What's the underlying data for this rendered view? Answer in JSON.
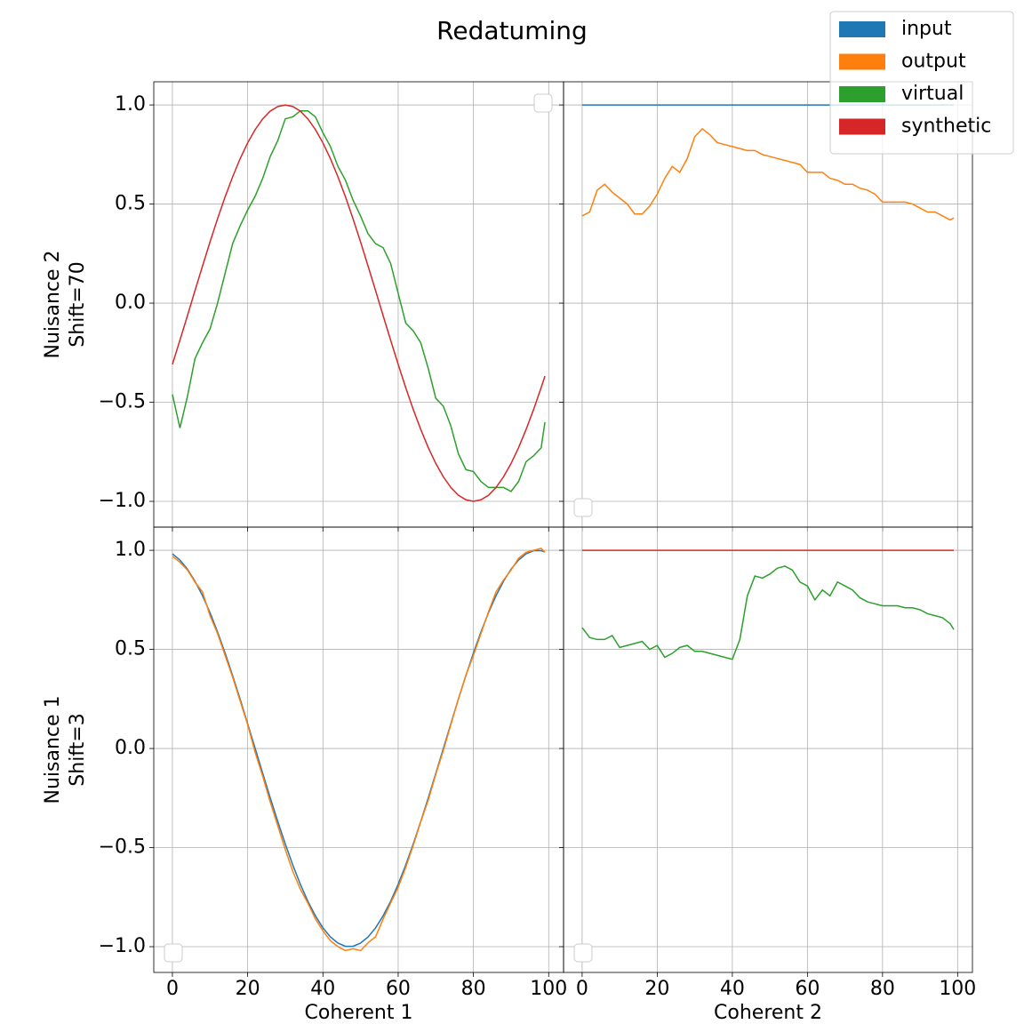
{
  "title": "Redatuming",
  "legend_loc": "upper right",
  "chart_data": [
    {
      "type": "line",
      "xlabel": "Coherent 1",
      "ylabel": [
        "Nuisance 1",
        "Shift=3"
      ],
      "x": [
        0,
        2,
        4,
        6,
        8,
        10,
        12,
        14,
        16,
        18,
        20,
        22,
        24,
        26,
        28,
        30,
        32,
        34,
        36,
        38,
        40,
        42,
        44,
        46,
        48,
        50,
        52,
        54,
        56,
        58,
        60,
        62,
        64,
        66,
        68,
        70,
        72,
        74,
        76,
        78,
        80,
        82,
        84,
        86,
        88,
        90,
        92,
        94,
        96,
        98,
        99
      ],
      "series": [
        {
          "name": "input",
          "color": "#1f77b4",
          "values": [
            0.982,
            0.951,
            0.905,
            0.844,
            0.771,
            0.685,
            0.588,
            0.482,
            0.368,
            0.249,
            0.125,
            0,
            -0.125,
            -0.249,
            -0.368,
            -0.482,
            -0.588,
            -0.685,
            -0.771,
            -0.844,
            -0.905,
            -0.951,
            -0.982,
            -0.998,
            -0.998,
            -0.982,
            -0.951,
            -0.905,
            -0.844,
            -0.771,
            -0.685,
            -0.588,
            -0.482,
            -0.368,
            -0.249,
            -0.125,
            0,
            0.125,
            0.249,
            0.368,
            0.482,
            0.588,
            0.685,
            0.771,
            0.844,
            0.905,
            0.951,
            0.982,
            0.998,
            0.998,
            0.992
          ]
        },
        {
          "name": "output",
          "color": "#ff7f0e",
          "values": [
            0.97,
            0.94,
            0.9,
            0.84,
            0.79,
            0.67,
            0.58,
            0.47,
            0.36,
            0.24,
            0.12,
            -0.02,
            -0.14,
            -0.27,
            -0.39,
            -0.51,
            -0.62,
            -0.71,
            -0.78,
            -0.86,
            -0.92,
            -0.97,
            -1.0,
            -1.02,
            -1.01,
            -1.02,
            -0.98,
            -0.95,
            -0.86,
            -0.78,
            -0.7,
            -0.6,
            -0.49,
            -0.37,
            -0.26,
            -0.13,
            -0.01,
            0.12,
            0.25,
            0.37,
            0.47,
            0.58,
            0.69,
            0.79,
            0.85,
            0.9,
            0.96,
            0.99,
            1.0,
            1.01,
            0.99
          ]
        }
      ],
      "xlim": [
        -4.95,
        103.95
      ],
      "ylim": [
        -1.13,
        1.117
      ],
      "xticks": [
        0,
        20,
        40,
        60,
        80,
        100
      ],
      "yticks": [
        {
          "value": -1,
          "label": "−1.0"
        },
        {
          "value": -0.5,
          "label": "−0.5"
        },
        {
          "value": 0,
          "label": "0.0"
        },
        0.5,
        {
          "value": 1,
          "label": "1.0"
        }
      ],
      "grid": true
    },
    {
      "type": "line",
      "ylabel": [
        "Nuisance 2",
        "Shift=70"
      ],
      "x": [
        0,
        2,
        4,
        6,
        8,
        10,
        12,
        14,
        16,
        18,
        20,
        22,
        24,
        26,
        28,
        30,
        32,
        34,
        36,
        38,
        40,
        42,
        44,
        46,
        48,
        50,
        52,
        54,
        56,
        58,
        60,
        62,
        64,
        66,
        68,
        70,
        72,
        74,
        76,
        78,
        80,
        82,
        84,
        86,
        88,
        90,
        92,
        94,
        96,
        98,
        99
      ],
      "series": [
        {
          "name": "virtual",
          "color": "#2ca02c",
          "values": [
            -0.46,
            -0.63,
            -0.47,
            -0.28,
            -0.2,
            -0.13,
            0.0,
            0.15,
            0.3,
            0.39,
            0.47,
            0.54,
            0.63,
            0.74,
            0.82,
            0.93,
            0.94,
            0.97,
            0.97,
            0.94,
            0.86,
            0.79,
            0.69,
            0.62,
            0.52,
            0.44,
            0.35,
            0.3,
            0.28,
            0.2,
            0.05,
            -0.1,
            -0.14,
            -0.2,
            -0.33,
            -0.48,
            -0.52,
            -0.62,
            -0.76,
            -0.84,
            -0.85,
            -0.9,
            -0.93,
            -0.93,
            -0.93,
            -0.95,
            -0.9,
            -0.8,
            -0.77,
            -0.73,
            -0.6
          ]
        },
        {
          "name": "synthetic",
          "color": "#d62728",
          "values": [
            -0.309,
            -0.187,
            -0.063,
            0.063,
            0.187,
            0.309,
            0.426,
            0.536,
            0.637,
            0.729,
            0.809,
            0.876,
            0.93,
            0.969,
            0.992,
            1,
            0.992,
            0.969,
            0.93,
            0.876,
            0.809,
            0.729,
            0.637,
            0.536,
            0.426,
            0.309,
            0.187,
            0.063,
            -0.063,
            -0.187,
            -0.309,
            -0.426,
            -0.536,
            -0.637,
            -0.729,
            -0.809,
            -0.876,
            -0.93,
            -0.969,
            -0.992,
            -1,
            -0.992,
            -0.969,
            -0.93,
            -0.876,
            -0.809,
            -0.729,
            -0.637,
            -0.536,
            -0.426,
            -0.368
          ]
        }
      ],
      "xlim": [
        -4.95,
        103.95
      ],
      "ylim": [
        -1.13,
        1.117
      ],
      "xticks": [
        0,
        20,
        40,
        60,
        80,
        100
      ],
      "yticks": [
        {
          "value": -1,
          "label": "−1.0"
        },
        {
          "value": -0.5,
          "label": "−0.5"
        },
        {
          "value": 0,
          "label": "0.0"
        },
        0.5,
        {
          "value": 1,
          "label": "1.0"
        }
      ],
      "grid": true
    },
    {
      "type": "line",
      "x": [
        0,
        2,
        4,
        6,
        8,
        10,
        12,
        14,
        16,
        18,
        20,
        22,
        24,
        26,
        28,
        30,
        32,
        34,
        36,
        38,
        40,
        42,
        44,
        46,
        48,
        50,
        52,
        54,
        56,
        58,
        60,
        62,
        64,
        66,
        68,
        70,
        72,
        74,
        76,
        78,
        80,
        82,
        84,
        86,
        88,
        90,
        92,
        94,
        96,
        98,
        99
      ],
      "series": [
        {
          "name": "input",
          "color": "#1f77b4",
          "values": [
            1,
            1,
            1,
            1,
            1,
            1,
            1,
            1,
            1,
            1,
            1,
            1,
            1,
            1,
            1,
            1,
            1,
            1,
            1,
            1,
            1,
            1,
            1,
            1,
            1,
            1,
            1,
            1,
            1,
            1,
            1,
            1,
            1,
            1,
            1,
            1,
            1,
            1,
            1,
            1,
            1,
            1,
            1,
            1,
            1,
            1,
            1,
            1,
            1,
            1,
            1
          ]
        },
        {
          "name": "output",
          "color": "#ff7f0e",
          "values": [
            0.44,
            0.46,
            0.57,
            0.6,
            0.56,
            0.53,
            0.5,
            0.45,
            0.45,
            0.49,
            0.55,
            0.63,
            0.69,
            0.66,
            0.73,
            0.84,
            0.88,
            0.85,
            0.81,
            0.8,
            0.79,
            0.78,
            0.77,
            0.77,
            0.75,
            0.74,
            0.73,
            0.72,
            0.71,
            0.7,
            0.66,
            0.66,
            0.66,
            0.63,
            0.62,
            0.6,
            0.6,
            0.58,
            0.57,
            0.55,
            0.51,
            0.51,
            0.51,
            0.51,
            0.5,
            0.48,
            0.46,
            0.46,
            0.44,
            0.42,
            0.43
          ]
        }
      ],
      "xlim": [
        -4.95,
        103.95
      ],
      "ylim": [
        -1.13,
        1.117
      ],
      "xticks": [
        0,
        20,
        40,
        60,
        80,
        100
      ],
      "yticks": [
        -1,
        -0.5,
        0,
        0.5,
        1
      ],
      "grid": true
    },
    {
      "type": "line",
      "xlabel": "Coherent 2",
      "x": [
        0,
        2,
        4,
        6,
        8,
        10,
        12,
        14,
        16,
        18,
        20,
        22,
        24,
        26,
        28,
        30,
        32,
        34,
        36,
        38,
        40,
        42,
        44,
        46,
        48,
        50,
        52,
        54,
        56,
        58,
        60,
        62,
        64,
        66,
        68,
        70,
        72,
        74,
        76,
        78,
        80,
        82,
        84,
        86,
        88,
        90,
        92,
        94,
        96,
        98,
        99
      ],
      "series": [
        {
          "name": "virtual",
          "color": "#2ca02c",
          "values": [
            0.61,
            0.56,
            0.55,
            0.55,
            0.57,
            0.51,
            0.52,
            0.53,
            0.54,
            0.5,
            0.52,
            0.46,
            0.48,
            0.51,
            0.52,
            0.49,
            0.49,
            0.48,
            0.47,
            0.46,
            0.45,
            0.55,
            0.77,
            0.87,
            0.86,
            0.88,
            0.91,
            0.92,
            0.9,
            0.84,
            0.82,
            0.75,
            0.8,
            0.77,
            0.84,
            0.82,
            0.8,
            0.76,
            0.74,
            0.73,
            0.72,
            0.72,
            0.72,
            0.71,
            0.71,
            0.7,
            0.68,
            0.67,
            0.66,
            0.63,
            0.6
          ]
        },
        {
          "name": "synthetic",
          "color": "#d62728",
          "values": [
            1,
            1,
            1,
            1,
            1,
            1,
            1,
            1,
            1,
            1,
            1,
            1,
            1,
            1,
            1,
            1,
            1,
            1,
            1,
            1,
            1,
            1,
            1,
            1,
            1,
            1,
            1,
            1,
            1,
            1,
            1,
            1,
            1,
            1,
            1,
            1,
            1,
            1,
            1,
            1,
            1,
            1,
            1,
            1,
            1,
            1,
            1,
            1,
            1,
            1,
            1
          ]
        }
      ],
      "xlim": [
        -4.95,
        103.95
      ],
      "ylim": [
        -1.13,
        1.117
      ],
      "xticks": [
        0,
        20,
        40,
        60,
        80,
        100
      ],
      "yticks": [
        -1,
        -0.5,
        0,
        0.5,
        1
      ],
      "grid": true
    }
  ]
}
